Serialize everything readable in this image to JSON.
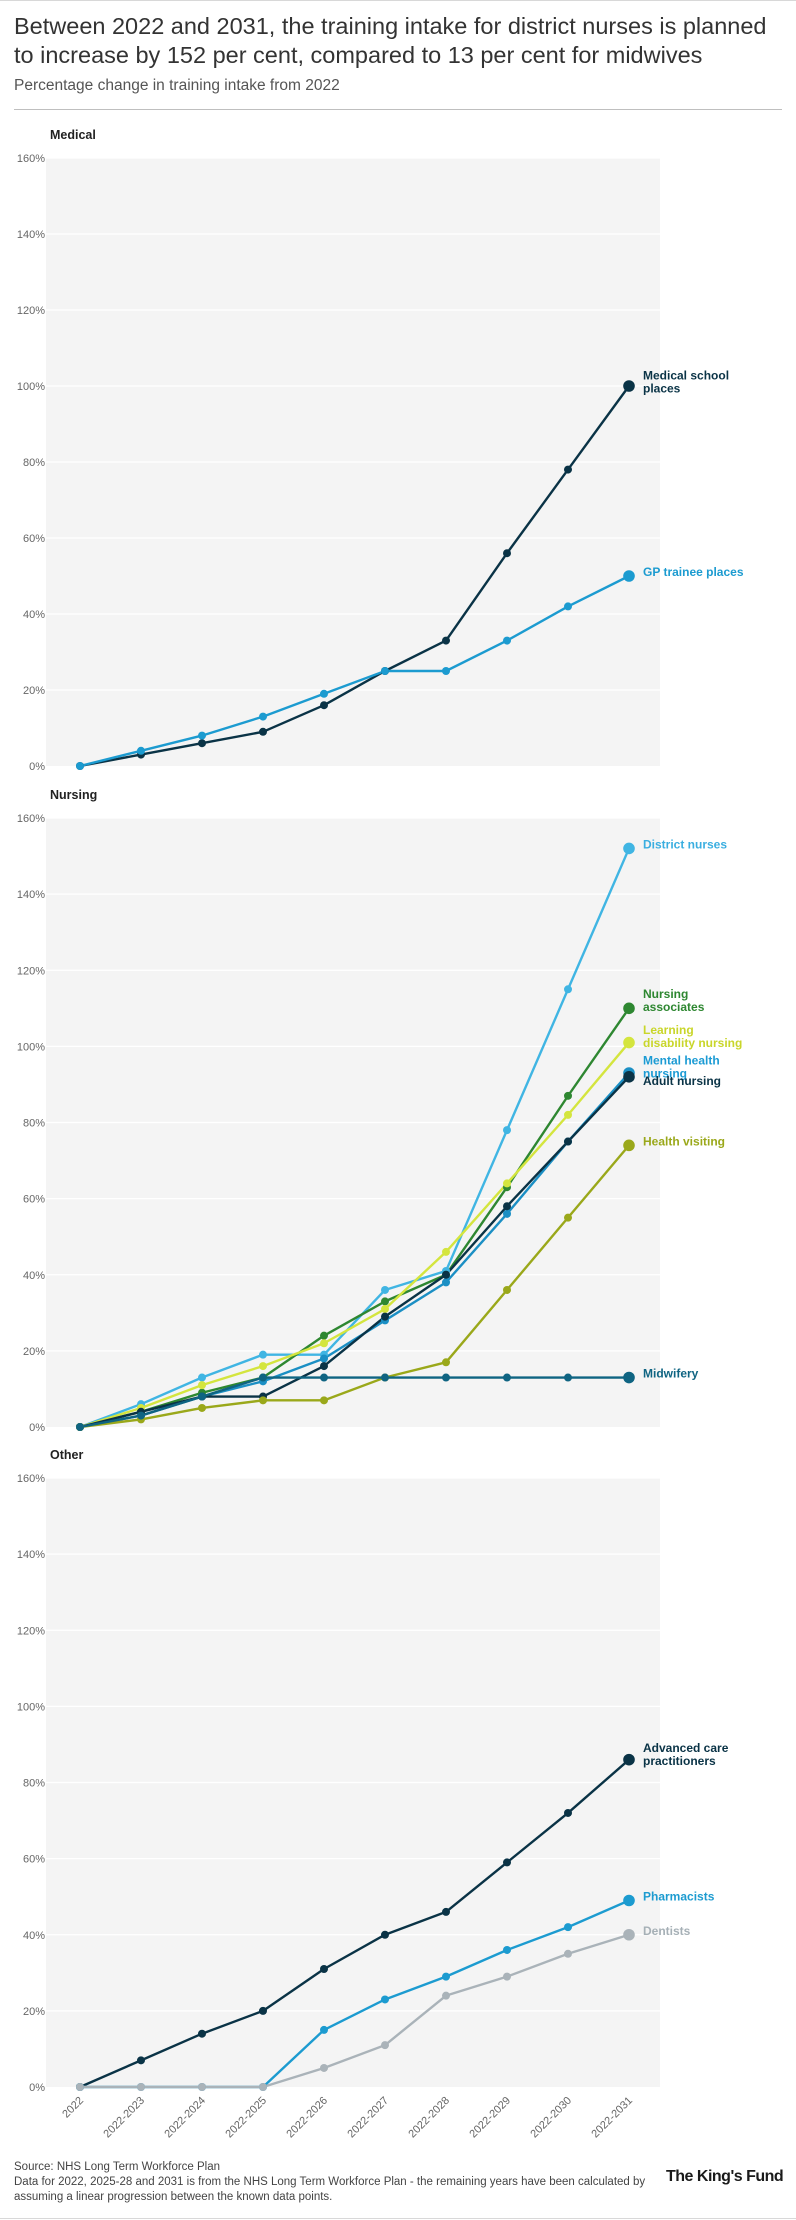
{
  "title": "Between 2022 and 2031, the training intake for district nurses is planned to increase by 152 per cent, compared to 13 per cent for midwives",
  "subtitle": "Percentage change in training intake from 2022",
  "source": "Source: NHS Long Term Workforce Plan",
  "note": "Data for 2022, 2025-28 and 2031 is from the NHS Long Term Workforce Plan - the remaining years have been calculated by assuming a linear progression between the known data points.",
  "logo": "The King's Fund",
  "chart_data": [
    {
      "type": "line",
      "title": "Medical",
      "x": [
        "2022",
        "2022-2023",
        "2022-2024",
        "2022-2025",
        "2022-2026",
        "2022-2027",
        "2022-2028",
        "2022-2029",
        "2022-2030",
        "2022-2031"
      ],
      "ylim": [
        0,
        160
      ],
      "yticks": [
        "0%",
        "20%",
        "40%",
        "60%",
        "80%",
        "100%",
        "120%",
        "140%",
        "160%"
      ],
      "grid": true,
      "series": [
        {
          "name": "Medical school places",
          "color": "#0a3346",
          "values": [
            0,
            3,
            6,
            9,
            16,
            25,
            33,
            56,
            78,
            100
          ]
        },
        {
          "name": "GP trainee places",
          "color": "#1c9bd0",
          "values": [
            0,
            4,
            8,
            13,
            19,
            25,
            25,
            33,
            42,
            50
          ]
        }
      ]
    },
    {
      "type": "line",
      "title": "Nursing",
      "x": [
        "2022",
        "2022-2023",
        "2022-2024",
        "2022-2025",
        "2022-2026",
        "2022-2027",
        "2022-2028",
        "2022-2029",
        "2022-2030",
        "2022-2031"
      ],
      "ylim": [
        0,
        160
      ],
      "yticks": [
        "0%",
        "20%",
        "40%",
        "60%",
        "80%",
        "100%",
        "120%",
        "140%",
        "160%"
      ],
      "grid": true,
      "series": [
        {
          "name": "District nurses",
          "color": "#40b5e3",
          "values": [
            0,
            6,
            13,
            19,
            19,
            36,
            41,
            78,
            115,
            152
          ]
        },
        {
          "name": "Nursing associates",
          "color": "#2e8731",
          "values": [
            0,
            4,
            9,
            13,
            24,
            33,
            40,
            63,
            87,
            110
          ]
        },
        {
          "name": "Learning disability nursing",
          "color": "#d4e53e",
          "values": [
            0,
            5,
            11,
            16,
            22,
            31,
            46,
            64,
            82,
            101
          ]
        },
        {
          "name": "Mental health nursing",
          "color": "#1b8fc4",
          "values": [
            0,
            3,
            8,
            12,
            18,
            28,
            38,
            56,
            75,
            93
          ]
        },
        {
          "name": "Adult nursing",
          "color": "#0a3346",
          "values": [
            0,
            4,
            8,
            8,
            16,
            29,
            40,
            58,
            75,
            92
          ]
        },
        {
          "name": "Health visiting",
          "color": "#9aa81a",
          "values": [
            0,
            2,
            5,
            7,
            7,
            13,
            17,
            36,
            55,
            74
          ]
        },
        {
          "name": "Midwifery",
          "color": "#0f6482",
          "values": [
            0,
            3,
            8,
            13,
            13,
            13,
            13,
            13,
            13,
            13
          ]
        }
      ]
    },
    {
      "type": "line",
      "title": "Other",
      "x": [
        "2022",
        "2022-2023",
        "2022-2024",
        "2022-2025",
        "2022-2026",
        "2022-2027",
        "2022-2028",
        "2022-2029",
        "2022-2030",
        "2022-2031"
      ],
      "ylim": [
        0,
        160
      ],
      "yticks": [
        "0%",
        "20%",
        "40%",
        "60%",
        "80%",
        "100%",
        "120%",
        "140%",
        "160%"
      ],
      "grid": true,
      "series": [
        {
          "name": "Advanced care practitioners",
          "color": "#0a3346",
          "values": [
            0,
            7,
            14,
            20,
            31,
            40,
            46,
            59,
            72,
            86
          ]
        },
        {
          "name": "Pharmacists",
          "color": "#1c9bd0",
          "values": [
            0,
            0,
            0,
            0,
            15,
            23,
            29,
            36,
            42,
            49
          ]
        },
        {
          "name": "Dentists",
          "color": "#aab3b9",
          "values": [
            0,
            0,
            0,
            0,
            5,
            11,
            24,
            29,
            35,
            40
          ]
        }
      ]
    }
  ]
}
